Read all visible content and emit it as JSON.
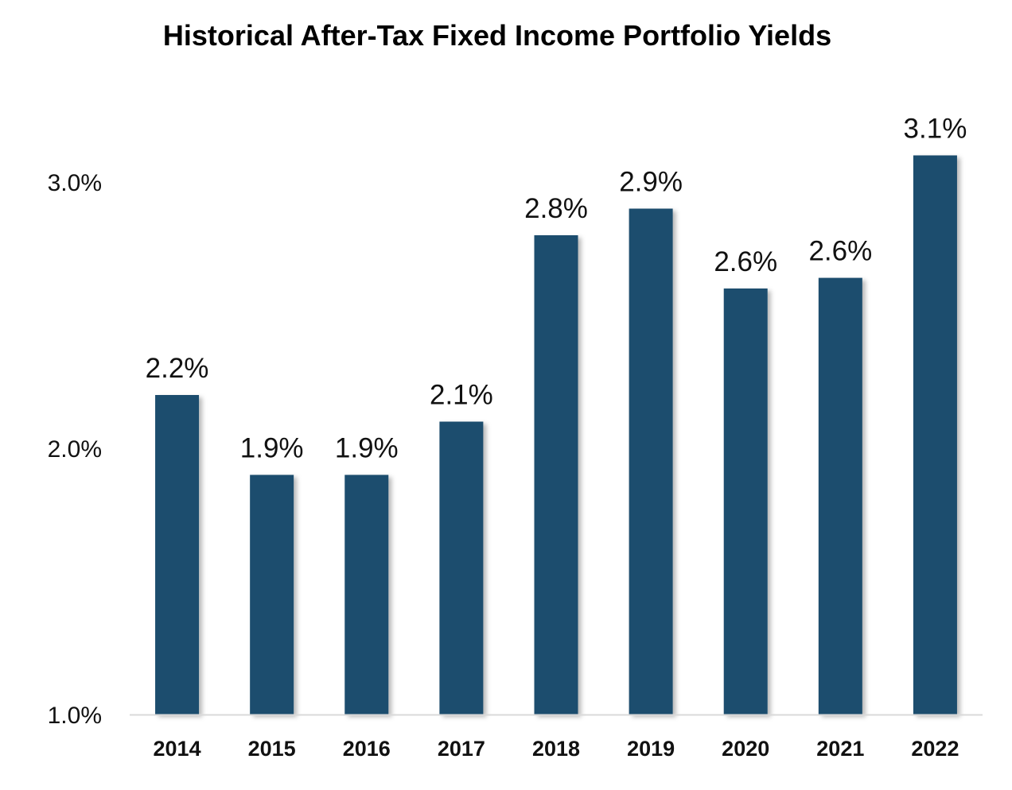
{
  "chart_data": {
    "type": "bar",
    "title": "Historical After-Tax Fixed Income Portfolio Yields",
    "xlabel": "",
    "ylabel": "",
    "categories": [
      "2014",
      "2015",
      "2016",
      "2017",
      "2018",
      "2019",
      "2020",
      "2021",
      "2022"
    ],
    "values": [
      2.2,
      1.9,
      1.9,
      2.1,
      2.8,
      2.9,
      2.6,
      2.64,
      3.1
    ],
    "data_labels": [
      "2.2%",
      "1.9%",
      "1.9%",
      "2.1%",
      "2.8%",
      "2.9%",
      "2.6%",
      "2.6%",
      "3.1%"
    ],
    "ylim": [
      1.0,
      3.3
    ],
    "yticks": [
      1.0,
      2.0,
      3.0
    ],
    "ytick_labels": [
      "1.0%",
      "2.0%",
      "3.0%"
    ],
    "grid": false,
    "legend": "none",
    "colors": {
      "bar": "#1f4e6e",
      "axis_line": "#d9d9d9"
    }
  }
}
